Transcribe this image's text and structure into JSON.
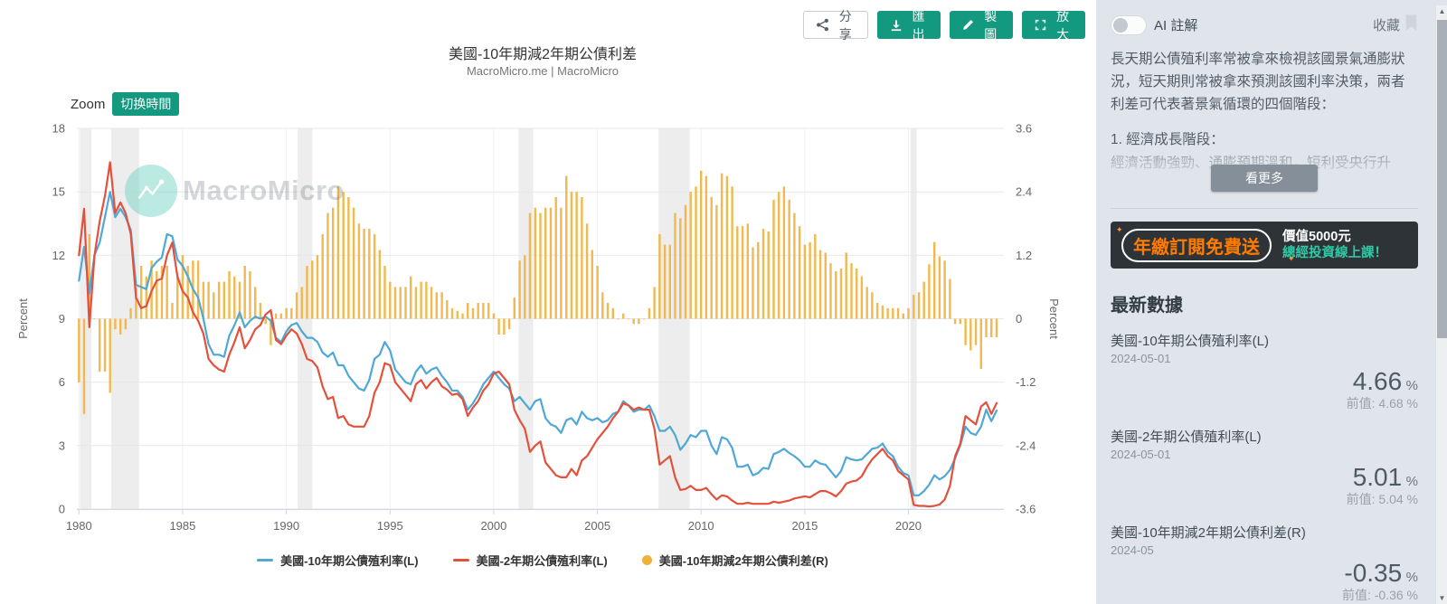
{
  "toolbar": {
    "share": "分享",
    "export": "匯出",
    "draw": "製圖",
    "expand": "放大"
  },
  "icons": {
    "share": "share-nodes",
    "export": "download-arrow",
    "draw": "pencil",
    "expand": "fullscreen-corners",
    "favorite": "bookmark-ribbon",
    "ai_toggle": "switch-off",
    "sparkle": "✦"
  },
  "header": {
    "title": "美國-10年期減2年期公債利差",
    "subtitle": "MacroMicro.me | MacroMicro"
  },
  "zoom_controls": {
    "label": "Zoom",
    "switch_time": "切换時間"
  },
  "watermark": "MacroMicro",
  "chart_data": {
    "type": "mixed",
    "title": "美國-10年期減2年期公債利差",
    "x_start": 1980,
    "x_step": 0.25,
    "points": 178,
    "x_axis": {
      "ticks": [
        1980,
        1985,
        1990,
        1995,
        2000,
        2005,
        2010,
        2015,
        2020
      ],
      "range": [
        1979.9,
        2024.6
      ]
    },
    "left_axis": {
      "label": "Percent",
      "ticks": [
        0,
        3,
        6,
        9,
        12,
        15,
        18
      ],
      "range": [
        0,
        18
      ]
    },
    "right_axis": {
      "label": "Percent",
      "ticks": [
        -3.6,
        -2.4,
        -1.2,
        0,
        1.2,
        2.4,
        3.6
      ],
      "range": [
        -3.6,
        3.6
      ]
    },
    "recession_bands": [
      [
        1980.05,
        1980.6
      ],
      [
        1981.55,
        1982.9
      ],
      [
        1990.55,
        1991.25
      ],
      [
        2001.2,
        2001.9
      ],
      [
        2007.95,
        2009.45
      ],
      [
        2020.1,
        2020.4
      ]
    ],
    "series": [
      {
        "name": "美國-10年期公債殖利率(L)",
        "type": "line",
        "axis": "left",
        "color": "#4FA8D5",
        "values": [
          10.8,
          12.4,
          10.2,
          12.0,
          12.6,
          13.8,
          15.0,
          13.8,
          14.2,
          13.8,
          13.2,
          10.6,
          10.5,
          10.4,
          11.4,
          11.7,
          11.9,
          13.0,
          12.9,
          11.8,
          11.5,
          11.0,
          10.4,
          10.0,
          9.0,
          7.8,
          7.3,
          7.3,
          7.2,
          8.2,
          8.7,
          9.3,
          8.6,
          8.9,
          9.1,
          9.0,
          9.1,
          8.9,
          8.1,
          7.9,
          8.4,
          8.7,
          8.8,
          8.4,
          8.1,
          8.1,
          7.9,
          7.4,
          7.2,
          7.4,
          6.8,
          6.8,
          6.3,
          6.0,
          5.7,
          5.6,
          6.1,
          7.1,
          7.3,
          7.9,
          7.5,
          6.6,
          6.3,
          6.0,
          5.9,
          6.5,
          6.8,
          6.4,
          6.6,
          6.7,
          6.3,
          6.0,
          5.6,
          5.6,
          5.3,
          4.7,
          5.0,
          5.4,
          5.9,
          6.2,
          6.5,
          6.2,
          5.9,
          5.7,
          5.1,
          5.3,
          5.0,
          4.7,
          5.1,
          5.2,
          4.3,
          4.0,
          3.9,
          3.6,
          4.2,
          4.3,
          4.0,
          4.6,
          4.3,
          4.2,
          4.3,
          4.1,
          4.2,
          4.5,
          4.6,
          5.1,
          4.9,
          4.6,
          4.7,
          4.7,
          4.9,
          4.4,
          3.7,
          3.7,
          3.9,
          3.5,
          2.8,
          3.1,
          3.5,
          3.4,
          3.7,
          3.7,
          3.0,
          2.6,
          3.4,
          3.3,
          2.9,
          2.0,
          2.0,
          2.1,
          1.6,
          1.7,
          1.95,
          1.9,
          2.6,
          2.7,
          2.85,
          2.65,
          2.5,
          2.3,
          2.0,
          2.0,
          2.3,
          2.15,
          2.1,
          1.8,
          1.5,
          1.8,
          2.45,
          2.35,
          2.3,
          2.35,
          2.6,
          2.85,
          2.9,
          3.1,
          2.7,
          2.5,
          2.0,
          1.7,
          1.6,
          0.65,
          0.65,
          0.85,
          1.15,
          1.6,
          1.4,
          1.55,
          1.85,
          2.4,
          3.0,
          3.9,
          3.6,
          3.5,
          3.9,
          4.7,
          4.15,
          4.66
        ]
      },
      {
        "name": "美國-2年期公債殖利率(L)",
        "type": "line",
        "axis": "left",
        "color": "#E4503C",
        "values": [
          12.0,
          14.2,
          8.6,
          12.0,
          13.6,
          14.8,
          16.4,
          14.0,
          14.5,
          14.0,
          13.0,
          10.0,
          9.5,
          9.6,
          10.3,
          10.8,
          10.9,
          12.0,
          12.6,
          11.0,
          10.3,
          10.0,
          9.3,
          8.9,
          8.3,
          7.1,
          6.8,
          6.6,
          6.5,
          7.3,
          7.9,
          8.6,
          7.6,
          8.0,
          8.5,
          8.7,
          9.2,
          9.4,
          8.0,
          7.8,
          8.2,
          8.5,
          8.3,
          7.8,
          7.1,
          7.0,
          6.7,
          5.8,
          5.2,
          5.3,
          4.3,
          4.4,
          4.0,
          3.9,
          3.9,
          3.9,
          4.4,
          5.5,
          6.0,
          6.9,
          6.8,
          6.0,
          5.7,
          5.4,
          5.1,
          5.9,
          6.1,
          5.7,
          6.0,
          6.2,
          5.8,
          5.65,
          5.4,
          5.45,
          5.2,
          4.4,
          4.8,
          5.1,
          5.6,
          5.9,
          6.4,
          6.5,
          6.2,
          5.9,
          4.7,
          4.2,
          3.8,
          2.7,
          3.0,
          3.2,
          2.2,
          1.9,
          1.6,
          1.5,
          1.5,
          1.9,
          1.6,
          2.3,
          2.5,
          2.9,
          3.3,
          3.6,
          3.9,
          4.3,
          4.6,
          5.0,
          4.9,
          4.7,
          4.8,
          4.7,
          4.7,
          3.8,
          2.1,
          2.3,
          2.5,
          1.5,
          0.9,
          0.95,
          1.1,
          0.9,
          0.9,
          1.0,
          0.7,
          0.45,
          0.65,
          0.6,
          0.4,
          0.25,
          0.25,
          0.3,
          0.25,
          0.25,
          0.25,
          0.25,
          0.35,
          0.3,
          0.35,
          0.4,
          0.5,
          0.55,
          0.6,
          0.55,
          0.7,
          0.85,
          0.85,
          0.75,
          0.6,
          0.85,
          1.2,
          1.3,
          1.35,
          1.55,
          2.0,
          2.35,
          2.6,
          2.85,
          2.5,
          2.3,
          1.8,
          1.6,
          1.4,
          0.2,
          0.15,
          0.15,
          0.12,
          0.15,
          0.22,
          0.45,
          1.1,
          2.5,
          3.1,
          4.4,
          4.2,
          4.0,
          4.85,
          5.05,
          4.5,
          5.01
        ]
      },
      {
        "name": "美國-10年期減2年期公債利差(R)",
        "type": "bar",
        "axis": "right",
        "color": "#F0B13C",
        "values": [
          -1.2,
          -1.8,
          1.6,
          0.0,
          -1.0,
          -1.0,
          -1.4,
          -0.2,
          -0.3,
          -0.2,
          0.2,
          0.6,
          1.0,
          0.8,
          1.1,
          0.9,
          1.0,
          1.0,
          0.3,
          0.8,
          1.2,
          1.0,
          1.1,
          1.1,
          0.7,
          0.7,
          0.5,
          0.7,
          0.7,
          0.9,
          0.8,
          0.7,
          1.0,
          0.9,
          0.6,
          0.3,
          -0.1,
          -0.5,
          0.1,
          0.1,
          0.2,
          0.2,
          0.5,
          0.6,
          1.0,
          1.1,
          1.2,
          1.6,
          2.0,
          2.1,
          2.5,
          2.4,
          2.3,
          2.1,
          1.8,
          1.7,
          1.7,
          1.6,
          1.3,
          1.0,
          0.7,
          0.6,
          0.6,
          0.6,
          0.8,
          0.6,
          0.7,
          0.7,
          0.6,
          0.5,
          0.5,
          0.35,
          0.2,
          0.15,
          0.1,
          0.3,
          0.2,
          0.3,
          0.3,
          0.3,
          0.1,
          -0.3,
          -0.3,
          -0.2,
          0.4,
          1.1,
          1.2,
          2.0,
          2.1,
          2.0,
          2.1,
          2.1,
          2.3,
          2.1,
          2.7,
          2.4,
          2.4,
          2.3,
          1.8,
          1.3,
          1.0,
          0.5,
          0.3,
          0.2,
          0.0,
          0.1,
          0.0,
          -0.1,
          -0.1,
          0.0,
          0.2,
          0.6,
          1.6,
          1.4,
          1.4,
          2.0,
          1.9,
          2.15,
          2.4,
          2.5,
          2.8,
          2.7,
          2.3,
          2.15,
          2.75,
          2.7,
          2.5,
          1.75,
          1.75,
          1.8,
          1.35,
          1.45,
          1.7,
          1.65,
          2.25,
          2.4,
          2.5,
          2.25,
          2.0,
          1.75,
          1.4,
          1.45,
          1.6,
          1.3,
          1.25,
          1.05,
          0.9,
          0.95,
          1.25,
          1.05,
          0.95,
          0.8,
          0.6,
          0.5,
          0.3,
          0.25,
          0.2,
          0.2,
          0.2,
          0.1,
          0.2,
          0.45,
          0.5,
          0.7,
          1.03,
          1.45,
          1.18,
          1.1,
          0.75,
          -0.1,
          -0.1,
          -0.5,
          -0.6,
          -0.5,
          -0.95,
          -0.35,
          -0.35,
          -0.35
        ]
      }
    ]
  },
  "sidebar": {
    "ai_toggle_label": "AI 註解",
    "favorite_label": "收藏",
    "description": "長天期公債殖利率常被拿來檢視該國景氣通膨狀況，短天期則常被拿來預測該國利率決策，兩者利差可代表著景氣循環的四個階段：",
    "section_title": "1. 經濟成長階段：",
    "section_preview": "經濟活動強勁、通膨預期溫和，短利受央行升",
    "see_more": "看更多",
    "ad": {
      "main": "年繳訂閱免費送",
      "value": "價值5000元",
      "course": "總經投資線上課！"
    },
    "latest_title": "最新數據",
    "latest": [
      {
        "name": "美國-10年期公債殖利率(L)",
        "date": "2024-05-01",
        "value": "4.66",
        "unit": "%",
        "prev": "前值: 4.68 %"
      },
      {
        "name": "美國-2年期公債殖利率(L)",
        "date": "2024-05-01",
        "value": "5.01",
        "unit": "%",
        "prev": "前值: 5.04 %"
      },
      {
        "name": "美國-10年期減2年期公債利差(R)",
        "date": "2024-05",
        "value": "-0.35",
        "unit": "%",
        "prev": "前值: -0.36 %"
      }
    ]
  },
  "colors": {
    "accent_teal": "#12997f",
    "line_10y": "#4FA8D5",
    "line_2y": "#E4503C",
    "spread_bar": "#F0B13C",
    "recession_band": "#ededed",
    "sidebar_bg": "#dfe5ea",
    "ad_bg": "#2e3338",
    "ad_orange": "#ff7b00",
    "ad_teal": "#2fc9a7"
  }
}
